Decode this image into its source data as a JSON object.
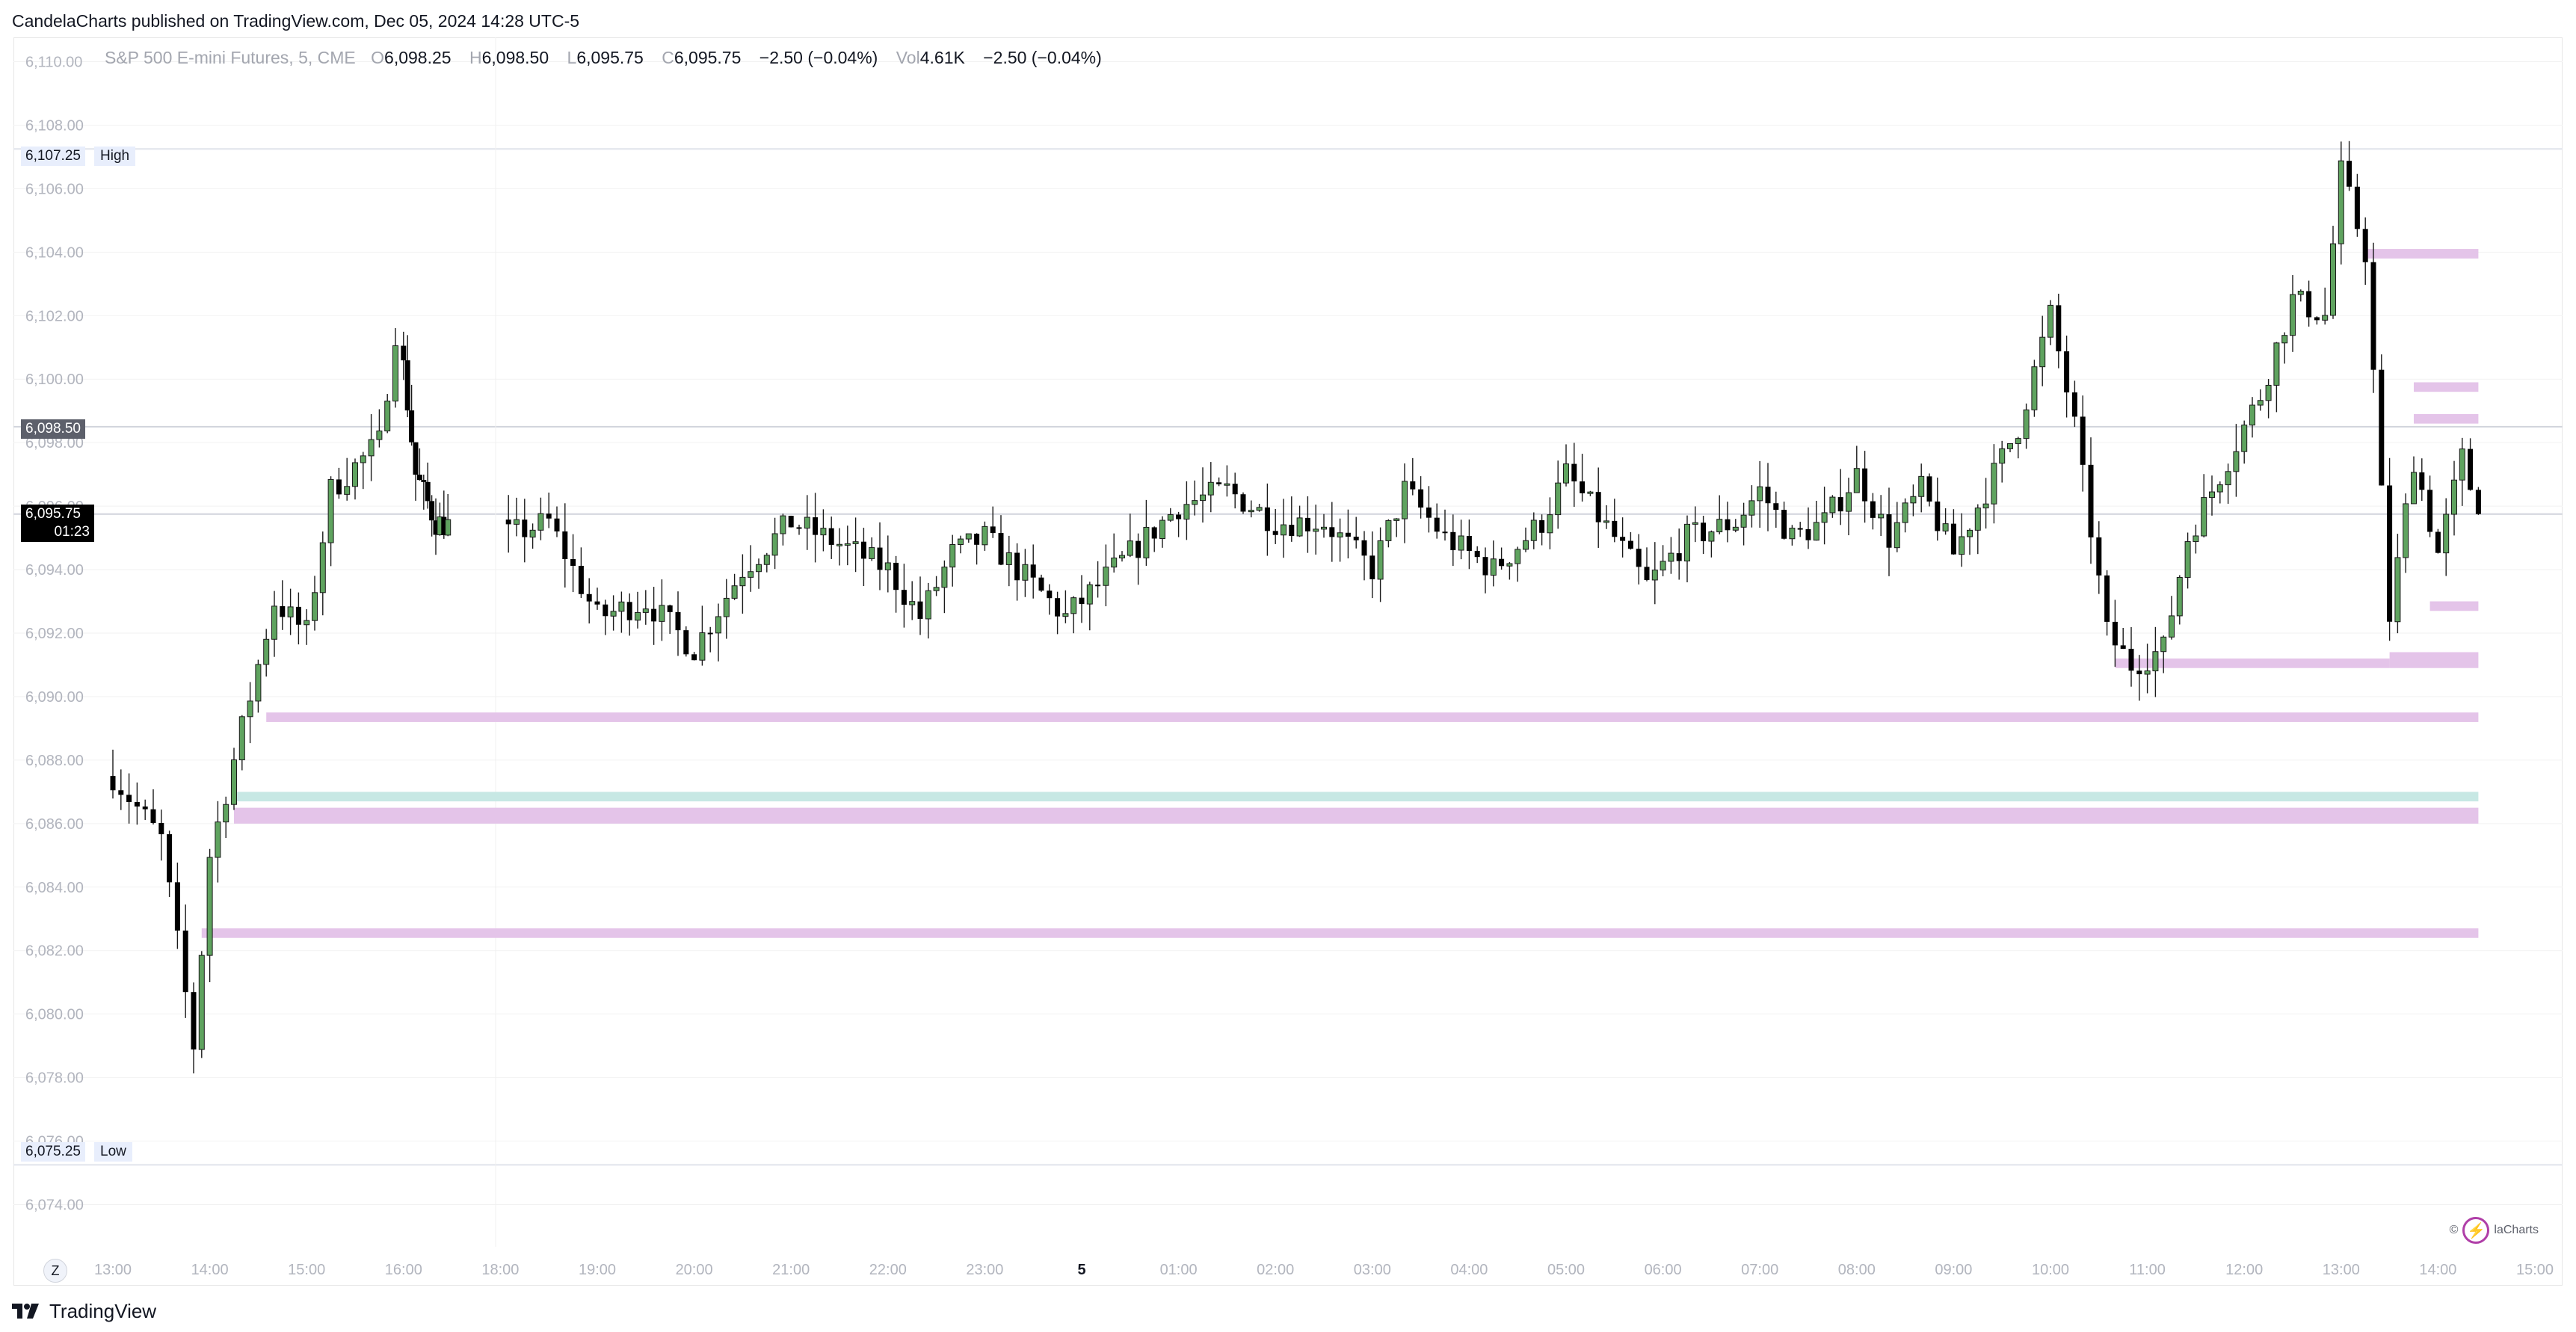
{
  "publisher_line": "CandelaCharts published on TradingView.com, Dec 05, 2024 14:28 UTC-5",
  "legend": {
    "symbol": "S&P 500 E-mini Futures, 5, CME",
    "o_label": "O",
    "o_value": "6,098.25",
    "h_label": "H",
    "h_value": "6,098.50",
    "l_label": "L",
    "l_value": "6,095.75",
    "c_label": "C",
    "c_value": "6,095.75",
    "change": "−2.50 (−0.04%)",
    "vol_label": "Vol",
    "vol_value": "4.61K",
    "vol_change": "−2.50 (−0.04%)"
  },
  "price_labels": {
    "high_value": "6,107.25",
    "high_text": "High",
    "low_value": "6,075.25",
    "low_text": "Low",
    "prev_value": "6,098.50",
    "last_value": "6,095.75",
    "countdown": "01:23"
  },
  "zoom_button": "Z",
  "footer_brand": "TradingView",
  "watermark_text": "laCharts",
  "watermark_symbol": "©",
  "colors": {
    "up": "#5fa35f",
    "down": "#000000",
    "zone_pink": "#e4c4e9",
    "zone_teal": "#c7e8e4",
    "grid": "#f2f2f2",
    "axis_text": "#b2b5be"
  },
  "chart_data": {
    "type": "candlestick",
    "symbol": "S&P 500 E-mini Futures",
    "interval": "5",
    "ylim": [
      6073.0,
      6111.0
    ],
    "y_ticks": [
      "6,074.00",
      "6,076.00",
      "6,078.00",
      "6,080.00",
      "6,082.00",
      "6,084.00",
      "6,086.00",
      "6,088.00",
      "6,090.00",
      "6,092.00",
      "6,094.00",
      "6,096.00",
      "6,098.00",
      "6,100.00",
      "6,102.00",
      "6,104.00",
      "6,106.00",
      "6,108.00",
      "6,110.00"
    ],
    "x_ticks": [
      "13:00",
      "14:00",
      "15:00",
      "16:00",
      "18:00",
      "19:00",
      "20:00",
      "21:00",
      "22:00",
      "23:00",
      "5",
      "01:00",
      "02:00",
      "03:00",
      "04:00",
      "05:00",
      "06:00",
      "07:00",
      "08:00",
      "09:00",
      "10:00",
      "11:00",
      "12:00",
      "13:00",
      "14:00",
      "15:00"
    ],
    "high": 6107.25,
    "low": 6075.25,
    "prev_close_line": 6098.5,
    "last": 6095.75,
    "anchors": [
      {
        "t": "13:00",
        "p": 6087.5
      },
      {
        "t": "13:30",
        "p": 6085.5
      },
      {
        "t": "13:50",
        "p": 6079.0
      },
      {
        "t": "14:00",
        "p": 6085.0
      },
      {
        "t": "14:20",
        "p": 6089.0
      },
      {
        "t": "14:40",
        "p": 6093.0
      },
      {
        "t": "15:00",
        "p": 6092.0
      },
      {
        "t": "15:15",
        "p": 6096.5
      },
      {
        "t": "15:45",
        "p": 6098.0
      },
      {
        "t": "15:55",
        "p": 6101.5
      },
      {
        "t": "16:15",
        "p": 6097.0
      },
      {
        "t": "16:40",
        "p": 6095.5
      },
      {
        "t": "18:00",
        "p": 6095.0
      },
      {
        "t": "18:30",
        "p": 6095.5
      },
      {
        "t": "19:00",
        "p": 6092.5
      },
      {
        "t": "19:30",
        "p": 6093.0
      },
      {
        "t": "20:00",
        "p": 6091.5
      },
      {
        "t": "20:30",
        "p": 6094.0
      },
      {
        "t": "21:00",
        "p": 6095.5
      },
      {
        "t": "21:30",
        "p": 6094.8
      },
      {
        "t": "22:00",
        "p": 6094.0
      },
      {
        "t": "22:20",
        "p": 6092.5
      },
      {
        "t": "22:40",
        "p": 6094.5
      },
      {
        "t": "23:00",
        "p": 6095.0
      },
      {
        "t": "23:30",
        "p": 6093.5
      },
      {
        "t": "23:50",
        "p": 6092.5
      },
      {
        "t": "00:20",
        "p": 6094.0
      },
      {
        "t": "01:00",
        "p": 6096.0
      },
      {
        "t": "01:30",
        "p": 6096.5
      },
      {
        "t": "02:00",
        "p": 6095.5
      },
      {
        "t": "02:30",
        "p": 6095.5
      },
      {
        "t": "03:00",
        "p": 6094.0
      },
      {
        "t": "03:20",
        "p": 6096.5
      },
      {
        "t": "03:45",
        "p": 6095.0
      },
      {
        "t": "04:15",
        "p": 6094.0
      },
      {
        "t": "04:45",
        "p": 6095.5
      },
      {
        "t": "05:00",
        "p": 6097.0
      },
      {
        "t": "05:30",
        "p": 6095.0
      },
      {
        "t": "05:50",
        "p": 6093.5
      },
      {
        "t": "06:15",
        "p": 6095.0
      },
      {
        "t": "06:45",
        "p": 6095.5
      },
      {
        "t": "07:00",
        "p": 6096.5
      },
      {
        "t": "07:20",
        "p": 6095.0
      },
      {
        "t": "07:40",
        "p": 6095.5
      },
      {
        "t": "08:00",
        "p": 6097.0
      },
      {
        "t": "08:20",
        "p": 6095.0
      },
      {
        "t": "08:40",
        "p": 6096.5
      },
      {
        "t": "09:00",
        "p": 6094.5
      },
      {
        "t": "09:20",
        "p": 6096.5
      },
      {
        "t": "09:40",
        "p": 6098.5
      },
      {
        "t": "10:00",
        "p": 6102.0
      },
      {
        "t": "10:15",
        "p": 6098.5
      },
      {
        "t": "10:35",
        "p": 6092.0
      },
      {
        "t": "10:50",
        "p": 6091.0
      },
      {
        "t": "11:10",
        "p": 6091.5
      },
      {
        "t": "11:25",
        "p": 6095.0
      },
      {
        "t": "11:50",
        "p": 6097.5
      },
      {
        "t": "12:10",
        "p": 6099.5
      },
      {
        "t": "12:30",
        "p": 6102.5
      },
      {
        "t": "12:50",
        "p": 6102.0
      },
      {
        "t": "13:00",
        "p": 6106.5
      },
      {
        "t": "13:15",
        "p": 6104.0
      },
      {
        "t": "13:30",
        "p": 6092.5
      },
      {
        "t": "13:45",
        "p": 6097.5
      },
      {
        "t": "14:00",
        "p": 6094.5
      },
      {
        "t": "14:15",
        "p": 6097.5
      },
      {
        "t": "14:25",
        "p": 6095.75
      }
    ],
    "zones": [
      {
        "kind": "pink",
        "from": 6103.8,
        "to": 6104.1,
        "start": "13:15",
        "end": "14:25"
      },
      {
        "kind": "pink",
        "from": 6099.6,
        "to": 6099.9,
        "start": "13:45",
        "end": "14:25"
      },
      {
        "kind": "pink",
        "from": 6098.6,
        "to": 6098.9,
        "start": "13:45",
        "end": "14:25"
      },
      {
        "kind": "pink",
        "from": 6092.7,
        "to": 6093.0,
        "start": "13:55",
        "end": "14:25"
      },
      {
        "kind": "pink",
        "from": 6090.9,
        "to": 6091.4,
        "start": "13:30",
        "end": "14:25"
      },
      {
        "kind": "pink",
        "from": 6090.9,
        "to": 6091.2,
        "start": "10:40",
        "end": "13:30"
      },
      {
        "kind": "pink",
        "from": 6089.2,
        "to": 6089.5,
        "start": "14:35",
        "end": "14:25"
      },
      {
        "kind": "teal",
        "from": 6086.7,
        "to": 6087.0,
        "start": "14:15",
        "end": "14:25"
      },
      {
        "kind": "pink",
        "from": 6086.0,
        "to": 6086.5,
        "start": "14:15",
        "end": "14:25"
      },
      {
        "kind": "pink",
        "from": 6082.4,
        "to": 6082.7,
        "start": "13:55",
        "end": "14:25"
      }
    ]
  }
}
